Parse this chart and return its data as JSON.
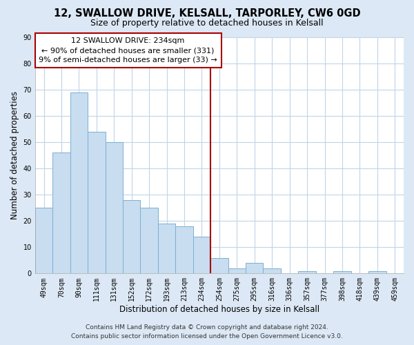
{
  "title": "12, SWALLOW DRIVE, KELSALL, TARPORLEY, CW6 0GD",
  "subtitle": "Size of property relative to detached houses in Kelsall",
  "xlabel": "Distribution of detached houses by size in Kelsall",
  "ylabel": "Number of detached properties",
  "categories": [
    "49sqm",
    "70sqm",
    "90sqm",
    "111sqm",
    "131sqm",
    "152sqm",
    "172sqm",
    "193sqm",
    "213sqm",
    "234sqm",
    "254sqm",
    "275sqm",
    "295sqm",
    "316sqm",
    "336sqm",
    "357sqm",
    "377sqm",
    "398sqm",
    "418sqm",
    "439sqm",
    "459sqm"
  ],
  "values": [
    25,
    46,
    69,
    54,
    50,
    28,
    25,
    19,
    18,
    14,
    6,
    2,
    4,
    2,
    0,
    1,
    0,
    1,
    0,
    1,
    0
  ],
  "bar_color": "#c8ddef",
  "bar_edge_color": "#7aafd4",
  "highlight_index": 9,
  "highlight_line_color": "#aa0000",
  "ylim": [
    0,
    90
  ],
  "yticks": [
    0,
    10,
    20,
    30,
    40,
    50,
    60,
    70,
    80,
    90
  ],
  "annotation_title": "12 SWALLOW DRIVE: 234sqm",
  "annotation_line1": "← 90% of detached houses are smaller (331)",
  "annotation_line2": "9% of semi-detached houses are larger (33) →",
  "annotation_box_edge": "#aa0000",
  "footer_line1": "Contains HM Land Registry data © Crown copyright and database right 2024.",
  "footer_line2": "Contains public sector information licensed under the Open Government Licence v3.0.",
  "bg_color": "#dce8f5",
  "plot_bg_color": "#ffffff",
  "title_fontsize": 10.5,
  "subtitle_fontsize": 9,
  "axis_label_fontsize": 8.5,
  "tick_fontsize": 7,
  "footer_fontsize": 6.5,
  "annotation_fontsize": 8
}
